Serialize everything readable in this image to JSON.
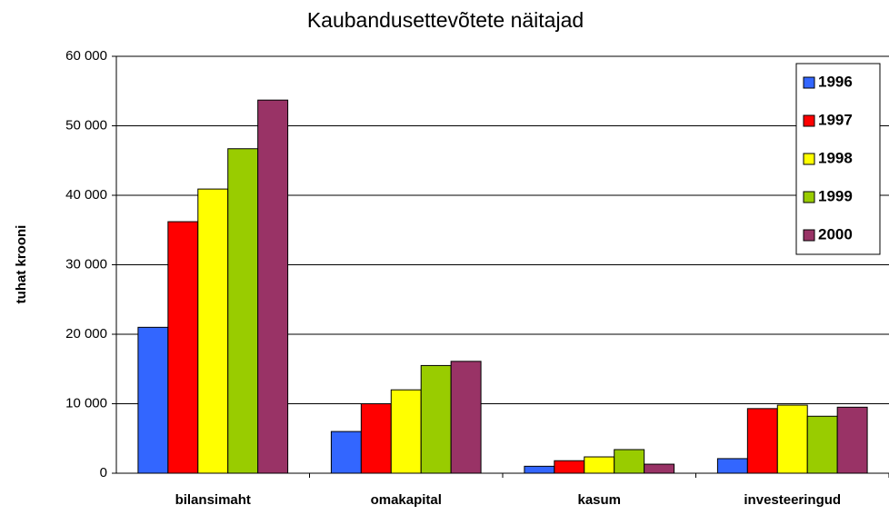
{
  "chart_data": {
    "type": "bar",
    "title": "Kaubandusettevõtete näitajad",
    "y_label": "tuhat krooni",
    "categories": [
      "bilansimaht",
      "omakapital",
      "kasum",
      "investeeringud"
    ],
    "series": [
      {
        "name": "1996",
        "color": "#3366ff",
        "values": [
          21000,
          6000,
          1000,
          2100
        ]
      },
      {
        "name": "1997",
        "color": "#ff0000",
        "values": [
          36200,
          10000,
          1800,
          9300
        ]
      },
      {
        "name": "1998",
        "color": "#ffff00",
        "values": [
          40900,
          12000,
          2350,
          9800
        ]
      },
      {
        "name": "1999",
        "color": "#99cc00",
        "values": [
          46700,
          15500,
          3400,
          8200
        ]
      },
      {
        "name": "2000",
        "color": "#993366",
        "values": [
          53700,
          16100,
          1300,
          9500
        ]
      }
    ],
    "ylim": [
      0,
      60000
    ],
    "yticks": [
      0,
      {
        "value": 10000,
        "label": "10 000"
      },
      {
        "value": 20000,
        "label": "20 000"
      },
      {
        "value": 30000,
        "label": "30 000"
      },
      {
        "value": 40000,
        "label": "40 000"
      },
      {
        "value": 50000,
        "label": "50 000"
      },
      {
        "value": 60000,
        "label": "60 000"
      }
    ],
    "grid": true,
    "legend": "upper right"
  }
}
